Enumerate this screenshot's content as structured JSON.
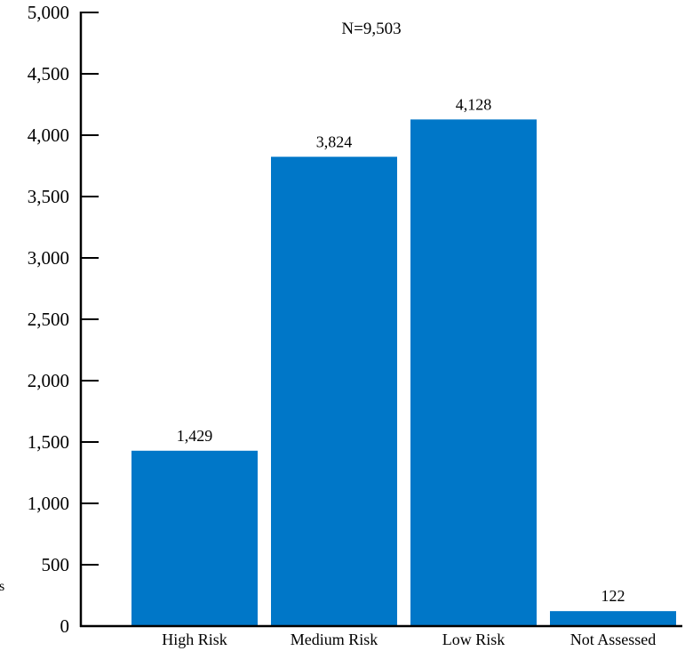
{
  "chart_data": {
    "type": "bar",
    "annotation": "N=9,503",
    "ylabel": "s",
    "categories": [
      "High Risk",
      "Medium Risk",
      "Low Risk",
      "Not Assessed"
    ],
    "values": [
      1429,
      3824,
      4128,
      122
    ],
    "value_labels": [
      "1,429",
      "3,824",
      "4,128",
      "122"
    ],
    "yticks": [
      0,
      500,
      1000,
      1500,
      2000,
      2500,
      3000,
      3500,
      4000,
      4500,
      5000
    ],
    "ytick_labels": [
      "0",
      "500",
      "1,000",
      "1,500",
      "2,000",
      "2,500",
      "3,000",
      "3,500",
      "4,000",
      "4,500",
      "5,000"
    ],
    "ylim": [
      0,
      5000
    ],
    "grid": false,
    "legend": "none",
    "bar_color": "#0077c8"
  }
}
